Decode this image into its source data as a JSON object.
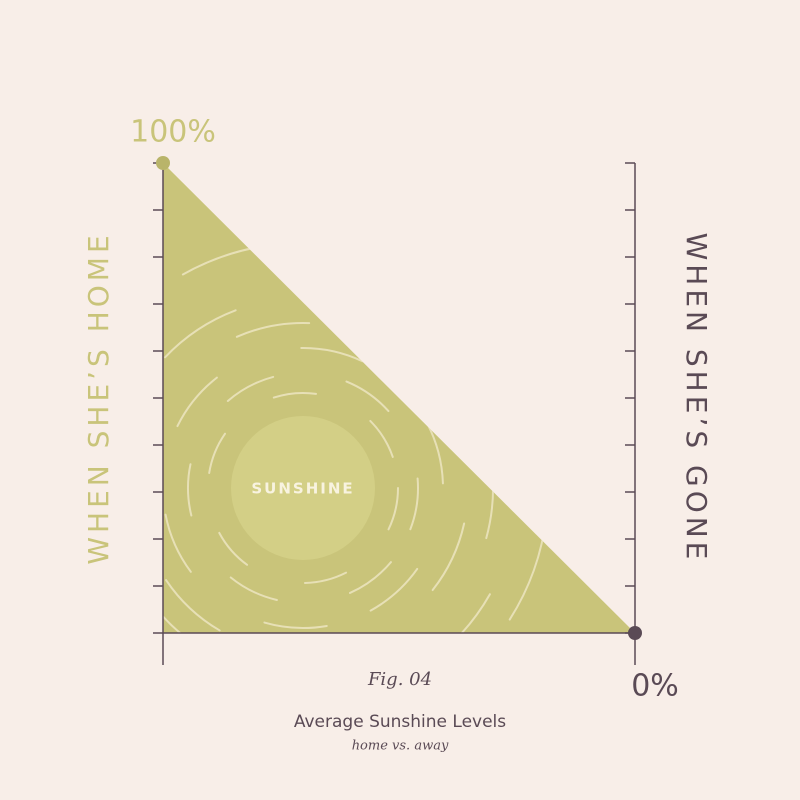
{
  "chart_data": {
    "type": "area",
    "title": "Average Sunshine Levels",
    "subtitle": "home vs. away",
    "caption": "Fig. 04",
    "annotation": "SUNSHINE",
    "y_label": "WHEN SHE’S HOME",
    "y2_label": "WHEN SHE’S GONE",
    "values": [
      100,
      0
    ],
    "value_labels": [
      "100%",
      "0%"
    ],
    "color": "#c9c47a",
    "ylim": [
      0,
      100
    ],
    "yticks": [
      0,
      10,
      20,
      30,
      40,
      50,
      60,
      70,
      80,
      90,
      100
    ],
    "y2lim": [
      0,
      100
    ],
    "y2ticks": [
      0,
      10,
      20,
      30,
      40,
      50,
      60,
      70,
      80,
      90,
      100
    ]
  }
}
